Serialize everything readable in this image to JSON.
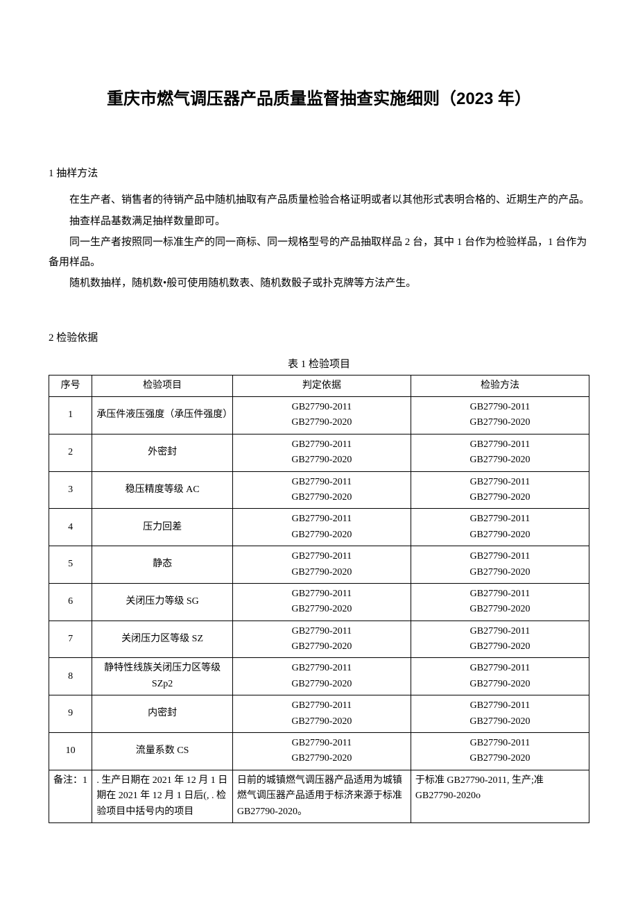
{
  "title": "重庆市燃气调压器产品质量监督抽查实施细则（2023 年）",
  "section1_heading": "1 抽样方法",
  "p1": "在生产者、销售者的待销产品中随机抽取有产品质量检验合格证明或者以其他形式表明合格的、近期生产的产品。",
  "p2": "抽查样品基数满足抽样数量即可。",
  "p3": "同一生产者按照同一标准生产的同一商标、同一规格型号的产品抽取样品 2 台，其中 1 台作为检验样品，1 台作为备用样品。",
  "p4": "随机数抽样，随机数•般可使用随机数表、随机数骰子或扑克牌等方法产生。",
  "section2_heading": "2 检验依据",
  "table_caption": "表 1 检验项目",
  "headers": {
    "seq": "序号",
    "item": "检验项目",
    "basis": "判定依据",
    "method": "检验方法"
  },
  "std_line1": "GB27790-2011",
  "std_line2": "GB27790-2020",
  "rows": [
    {
      "seq": "1",
      "item": "承压件液压强度（承压件强度）"
    },
    {
      "seq": "2",
      "item": "外密封"
    },
    {
      "seq": "3",
      "item": "稳压精度等级 AC"
    },
    {
      "seq": "4",
      "item": "压力回差"
    },
    {
      "seq": "5",
      "item": "静态"
    },
    {
      "seq": "6",
      "item": "关闭压力等级 SG"
    },
    {
      "seq": "7",
      "item": "关闭压力区等级 SZ"
    },
    {
      "seq": "8",
      "item": "静特性线族关闭压力区等级 SZp2"
    },
    {
      "seq": "9",
      "item": "内密封"
    },
    {
      "seq": "10",
      "item": "流量系数 CS"
    }
  ],
  "note": {
    "c1": "备注：1",
    "c2": ". 生产日期在 2021 年 12 月 1 日期在 2021 年 12 月 1 日后(, . 检验项目中括号内的项目",
    "c3": "日前的城镇燃气调压器产品适用为城镇燃气调压器产品适用于标济来源于标准 GB27790-2020。",
    "c4": "于标准 GB27790-2011, 生产;准 GB27790-2020o"
  }
}
